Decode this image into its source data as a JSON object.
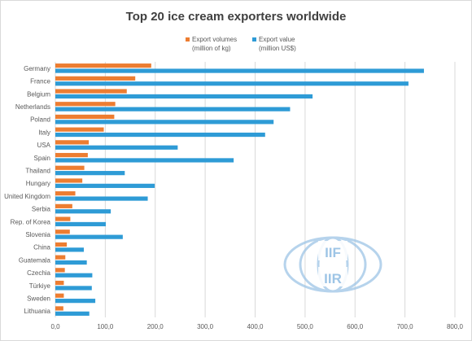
{
  "chart_data": {
    "type": "bar",
    "orientation": "horizontal",
    "title": "Top 20 ice cream exporters worldwide",
    "categories": [
      "Germany",
      "France",
      "Belgium",
      "Netherlands",
      "Poland",
      "Italy",
      "USA",
      "Spain",
      "Thailand",
      "Hungary",
      "United Kingdom",
      "Serbia",
      "Rep. of Korea",
      "Slovenia",
      "China",
      "Guatemala",
      "Czechia",
      "Türkiye",
      "Sweden",
      "Lithuania"
    ],
    "series": [
      {
        "name_line1": "Export volumes",
        "name_line2": "(million of kg)",
        "color": "#ED7D31",
        "values": [
          192,
          160,
          143,
          120,
          118,
          97,
          67,
          65,
          58,
          54,
          40,
          34,
          30,
          29,
          23,
          20,
          19,
          17,
          17,
          16
        ]
      },
      {
        "name_line1": "Export value",
        "name_line2": "(million US$)",
        "color": "#2E9BD6",
        "values": [
          738,
          707,
          515,
          470,
          437,
          420,
          245,
          357,
          139,
          199,
          185,
          111,
          101,
          135,
          57,
          63,
          74,
          73,
          80,
          68
        ]
      }
    ],
    "xlim": [
      0,
      800
    ],
    "xticks": [
      "0,0",
      "100,0",
      "200,0",
      "300,0",
      "400,0",
      "500,0",
      "600,0",
      "700,0",
      "800,0"
    ],
    "grid": true,
    "legend_position": "top"
  },
  "watermark": {
    "logo_text_top": "IIF",
    "logo_text_bottom": "IIR",
    "color": "#9EC5E6"
  },
  "colors": {
    "gridline": "#d9d9d9",
    "axis_text": "#595959",
    "title_text": "#404040"
  }
}
